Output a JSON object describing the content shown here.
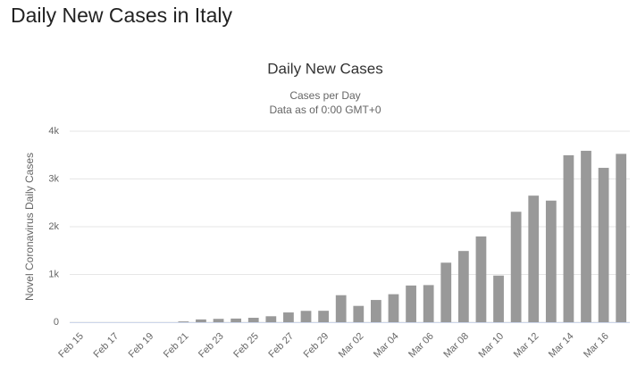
{
  "page_title": "Daily New Cases in Italy",
  "chart_data": {
    "type": "bar",
    "title": "Daily New Cases",
    "subtitle": [
      "Cases per Day",
      "Data as of 0:00 GMT+0"
    ],
    "y_label": "Novel Coronavirus Daily Cases",
    "color": "#999999",
    "grid": true,
    "categories": [
      "Feb 15",
      null,
      "Feb 17",
      null,
      "Feb 19",
      null,
      "Feb 21",
      null,
      "Feb 23",
      null,
      "Feb 25",
      null,
      "Feb 27",
      null,
      "Feb 29",
      null,
      "Mar 02",
      null,
      "Mar 04",
      null,
      "Mar 06",
      null,
      "Mar 08",
      null,
      "Mar 10",
      null,
      "Mar 12",
      null,
      "Mar 14",
      null,
      "Mar 16",
      null
    ],
    "values": [
      0,
      0,
      0,
      0,
      0,
      0,
      17,
      59,
      71,
      77,
      93,
      125,
      205,
      238,
      240,
      566,
      342,
      466,
      587,
      769,
      778,
      1247,
      1492,
      1797,
      977,
      2313,
      2651,
      2547,
      3497,
      3590,
      3233,
      3526
    ],
    "ylim": [
      0,
      4000
    ],
    "yticks": [
      0,
      {
        "value": 1000,
        "label": "1k"
      },
      {
        "value": 2000,
        "label": "2k"
      },
      {
        "value": 3000,
        "label": "3k"
      },
      {
        "value": 4000,
        "label": "4k"
      }
    ]
  }
}
